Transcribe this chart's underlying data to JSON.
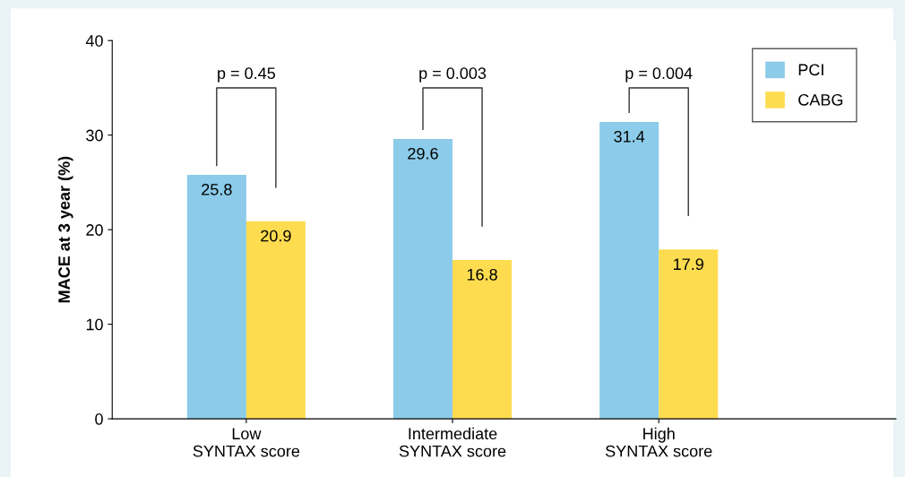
{
  "chart_data": {
    "type": "bar",
    "ylabel": "MACE at 3 year (%)",
    "categories": [
      "Low\nSYNTAX score",
      "Intermediate\nSYNTAX score",
      "High\nSYNTAX score"
    ],
    "series": [
      {
        "name": "PCI",
        "color": "#8ccbe9",
        "values": [
          25.8,
          29.6,
          31.4
        ]
      },
      {
        "name": "CABG",
        "color": "#fedc50",
        "values": [
          20.9,
          16.8,
          17.9
        ]
      }
    ],
    "ylim": [
      0,
      40
    ],
    "yticks": [
      0,
      10,
      20,
      30,
      40
    ],
    "data_labels": true,
    "grid": false,
    "legend": "top right",
    "annotations": [
      "p = 0.45",
      "p = 0.003",
      "p = 0.004"
    ]
  }
}
